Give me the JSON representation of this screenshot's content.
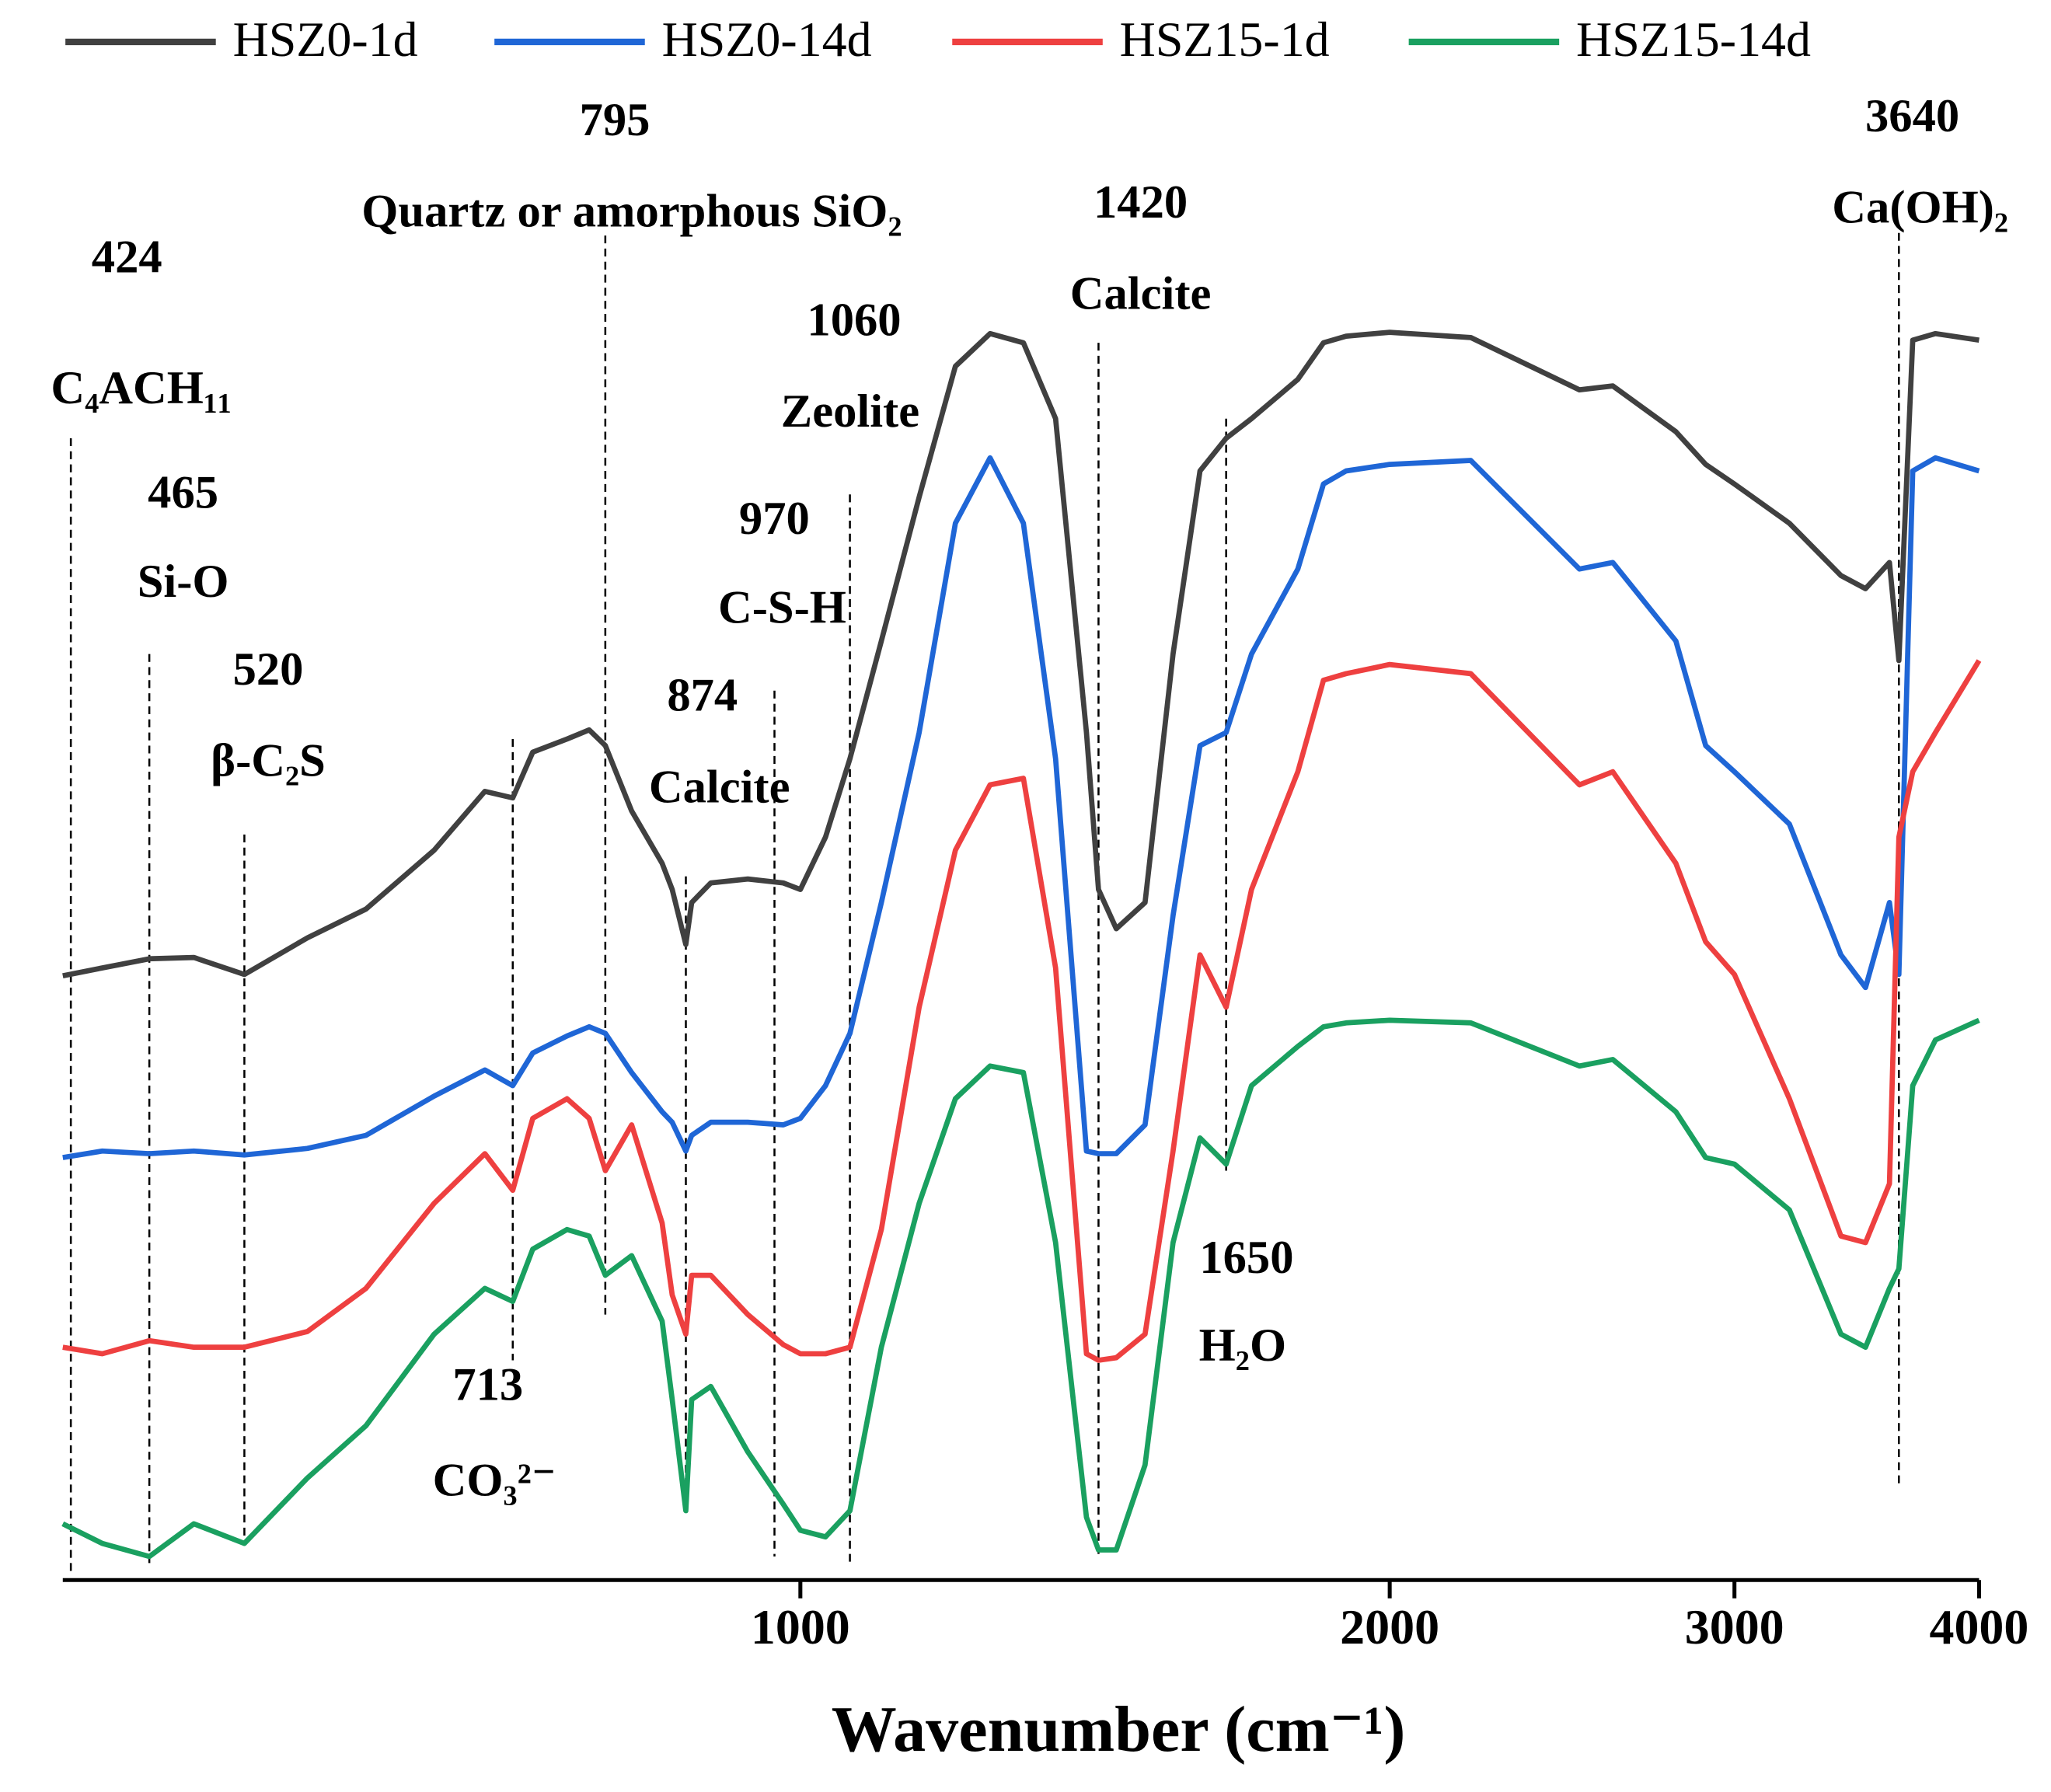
{
  "chart_data": {
    "type": "line",
    "x_label": "Wavenumber (cm⁻¹)",
    "log_x": true,
    "xlim": [
      420,
      4000
    ],
    "xticks": [
      1000,
      2000,
      3000,
      4000
    ],
    "ylim": [
      0,
      100
    ],
    "legend": "top",
    "x": [
      420,
      440,
      465,
      490,
      520,
      560,
      600,
      650,
      690,
      713,
      730,
      760,
      780,
      795,
      820,
      850,
      860,
      874,
      880,
      900,
      940,
      980,
      1000,
      1030,
      1060,
      1100,
      1150,
      1200,
      1250,
      1300,
      1350,
      1400,
      1420,
      1450,
      1500,
      1550,
      1600,
      1650,
      1700,
      1795,
      1850,
      1900,
      2000,
      2200,
      2500,
      2600,
      2800,
      2900,
      3000,
      3200,
      3400,
      3500,
      3600,
      3640,
      3700,
      3800,
      4000
    ],
    "series": [
      {
        "name": "HSZ0-1d",
        "color": "#404040",
        "values": [
          46.2,
          46.8,
          47.5,
          47.6,
          46.3,
          49.1,
          51.3,
          55.8,
          60.3,
          59.8,
          63.3,
          64.3,
          65,
          63.8,
          58.8,
          54.8,
          52.8,
          48.6,
          51.8,
          53.3,
          53.6,
          53.3,
          52.8,
          56.8,
          62.8,
          71.8,
          82.8,
          92.8,
          95.3,
          94.6,
          88.8,
          64.8,
          52.8,
          49.8,
          51.8,
          70.8,
          84.8,
          87.3,
          88.8,
          91.8,
          94.6,
          95.1,
          95.4,
          95,
          91,
          91.3,
          87.8,
          85.3,
          83.8,
          80.8,
          76.8,
          75.8,
          77.8,
          70.3,
          94.8,
          95.3,
          94.8
        ]
      },
      {
        "name": "HSZ0-14d",
        "color": "#1f66d6",
        "values": [
          32.3,
          32.8,
          32.6,
          32.8,
          32.5,
          33,
          34,
          37,
          39,
          37.8,
          40.3,
          41.6,
          42.3,
          41.8,
          38.8,
          35.8,
          35,
          32.8,
          34,
          35,
          35,
          34.8,
          35.3,
          37.8,
          41.8,
          51.8,
          64.8,
          80.8,
          85.8,
          80.8,
          62.8,
          32.8,
          32.6,
          32.6,
          34.8,
          50.8,
          63.8,
          64.8,
          70.8,
          77.3,
          83.8,
          84.8,
          85.3,
          85.6,
          77.3,
          77.8,
          71.8,
          63.8,
          61.8,
          57.8,
          47.8,
          45.3,
          51.8,
          46.3,
          84.8,
          85.8,
          84.8
        ]
      },
      {
        "name": "HSZ15-1d",
        "color": "#ee4040",
        "values": [
          17.8,
          17.3,
          18.3,
          17.8,
          17.8,
          19,
          22.3,
          28.8,
          32.6,
          29.8,
          35.3,
          36.8,
          35.3,
          31.3,
          34.8,
          27.3,
          21.8,
          18.8,
          23.3,
          23.3,
          20.3,
          18,
          17.3,
          17.3,
          17.8,
          26.8,
          43.8,
          55.8,
          60.8,
          61.3,
          46.8,
          17.3,
          16.8,
          17,
          18.8,
          32.8,
          47.8,
          43.8,
          52.8,
          61.8,
          68.8,
          69.3,
          70,
          69.3,
          60.8,
          61.8,
          54.8,
          48.8,
          46.3,
          36.8,
          26.3,
          25.8,
          30.3,
          56.8,
          61.8,
          64.8,
          70.3
        ]
      },
      {
        "name": "HSZ15-14d",
        "color": "#1aa060",
        "values": [
          4.3,
          2.8,
          1.8,
          4.3,
          2.8,
          7.8,
          11.8,
          18.8,
          22.3,
          21.3,
          25.3,
          26.8,
          26.3,
          23.3,
          24.8,
          19.8,
          13.8,
          5.3,
          13.8,
          14.8,
          9.8,
          5.8,
          3.8,
          3.3,
          5.3,
          17.8,
          28.8,
          36.8,
          39.3,
          38.8,
          25.8,
          4.8,
          2.3,
          2.3,
          8.8,
          25.8,
          33.8,
          31.8,
          37.8,
          40.8,
          42.3,
          42.6,
          42.8,
          42.6,
          39.3,
          39.8,
          35.8,
          32.3,
          31.8,
          28.3,
          18.8,
          17.8,
          22.3,
          23.8,
          37.8,
          41.3,
          42.8
        ]
      }
    ],
    "annotations": [
      {
        "wavenumber": 424,
        "name": "C₄ACH₁₁"
      },
      {
        "wavenumber": 465,
        "name": "Si-O"
      },
      {
        "wavenumber": 520,
        "name": "β-C₂S"
      },
      {
        "wavenumber": 713,
        "name": "CO₃²⁻"
      },
      {
        "wavenumber": 795,
        "name": "Quartz or amorphous SiO₂"
      },
      {
        "wavenumber": 874,
        "name": "Calcite"
      },
      {
        "wavenumber": 970,
        "name": "C-S-H"
      },
      {
        "wavenumber": 1060,
        "name": "Zeolite"
      },
      {
        "wavenumber": 1420,
        "name": "Calcite"
      },
      {
        "wavenumber": 1650,
        "name": "H₂O"
      },
      {
        "wavenumber": 3640,
        "name": "Ca(OH)₂"
      }
    ]
  }
}
